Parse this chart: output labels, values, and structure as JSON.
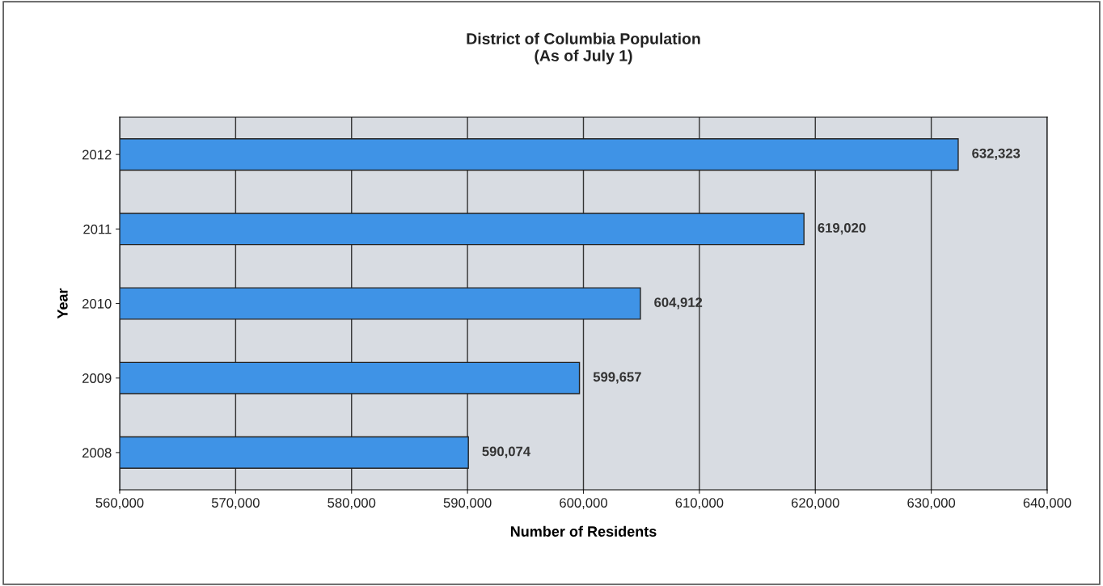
{
  "chart_data": {
    "type": "bar",
    "orientation": "horizontal",
    "title": "District of Columbia Population\n(As of July 1)",
    "xlabel": "Number of Residents",
    "ylabel": "Year",
    "categories": [
      "2012",
      "2011",
      "2010",
      "2009",
      "2008"
    ],
    "values": [
      632323,
      619020,
      604912,
      599657,
      590074
    ],
    "value_labels": [
      "632,323",
      "619,020",
      "604,912",
      "599,657",
      "590,074"
    ],
    "color": "#3f93e6",
    "xlim": [
      560000,
      640000
    ],
    "xticks": [
      {
        "value": 560000,
        "label": "560,000"
      },
      {
        "value": 570000,
        "label": "570,000"
      },
      {
        "value": 580000,
        "label": "580,000"
      },
      {
        "value": 590000,
        "label": "590,000"
      },
      {
        "value": 600000,
        "label": "600,000"
      },
      {
        "value": 610000,
        "label": "610,000"
      },
      {
        "value": 620000,
        "label": "620,000"
      },
      {
        "value": 630000,
        "label": "630,000"
      },
      {
        "value": 640000,
        "label": "640,000"
      }
    ],
    "grid": "x",
    "legend": false
  }
}
